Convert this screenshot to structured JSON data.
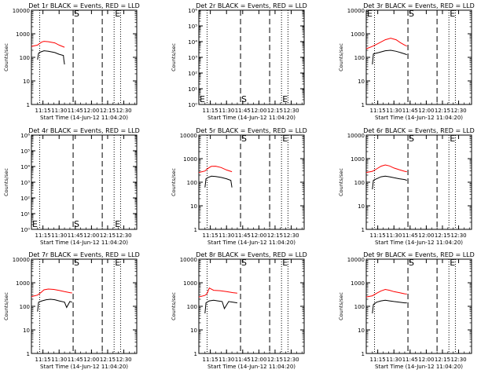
{
  "figure": {
    "background": "#ffffff",
    "foreground": "#000000",
    "lld_color": "#ff0000"
  },
  "chart_data": [
    {
      "type": "line",
      "title": "Det 1r BLACK = Events, RED = LLD",
      "xlabel": "Start Time (14-Jun-12 11:04:20)",
      "ylabel": "Counts/sec",
      "yscale": "log",
      "ylim": [
        1,
        10000
      ],
      "yticks": [
        1,
        10,
        100,
        1000,
        10000
      ],
      "ytick_labels": [
        "1",
        "10",
        "100",
        "1000",
        "10000"
      ],
      "xlim": [
        "11:04:20",
        "12:42:00"
      ],
      "xticks": [
        "11:15",
        "11:30",
        "11:45",
        "12:00",
        "12:15",
        "12:30"
      ],
      "markers": [
        {
          "label": "S",
          "time": "11:43",
          "value": 10000
        },
        {
          "label": "E",
          "time": "12:21",
          "value": 10000
        }
      ],
      "dashed_lines": [
        "11:43",
        "12:10"
      ],
      "dotted_lines": [
        "11:12",
        "12:21",
        "12:27"
      ],
      "series": [
        {
          "name": "LLD",
          "color": "#ff0000",
          "x": [
            "11:04:20",
            "11:10",
            "11:12",
            "11:14",
            "11:16",
            "11:20",
            "11:26",
            "11:30",
            "11:34",
            "11:35"
          ],
          "values": [
            290,
            330,
            390,
            450,
            480,
            460,
            410,
            330,
            280,
            270
          ]
        },
        {
          "name": "Events",
          "color": "#000000",
          "x": [
            "11:10",
            "11:11",
            "11:13",
            "11:16",
            "11:20",
            "11:26",
            "11:30",
            "11:34",
            "11:34:20",
            "11:35"
          ],
          "values": [
            80,
            150,
            170,
            190,
            180,
            160,
            135,
            120,
            80,
            50
          ]
        }
      ]
    },
    {
      "type": "line",
      "title": "Det 2r BLACK = Events, RED = LLD",
      "xlabel": "Start Time (14-Jun-12 11:04:20)",
      "ylabel": "Counts/sec",
      "yscale": "log",
      "ylim": [
        1,
        1000000
      ],
      "yticks": [
        1,
        10,
        100,
        1000,
        10000,
        100000,
        1000000
      ],
      "ytick_labels": [
        "10⁰",
        "10¹",
        "10²",
        "10³",
        "10⁴",
        "10⁵",
        "10⁶"
      ],
      "xlim": [
        "11:04:20",
        "12:42:00"
      ],
      "xticks": [
        "11:15",
        "11:30",
        "11:45",
        "12:00",
        "12:15",
        "12:30"
      ],
      "markers": [
        {
          "label": "E",
          "time": "11:04:20",
          "value": 1
        },
        {
          "label": "S",
          "time": "11:43",
          "value": 1
        },
        {
          "label": "E",
          "time": "12:21",
          "value": 1
        }
      ],
      "dashed_lines": [
        "11:43",
        "12:10"
      ],
      "dotted_lines": [
        "11:12",
        "12:21",
        "12:27"
      ],
      "series": []
    },
    {
      "type": "line",
      "title": "Det 3r BLACK = Events, RED = LLD",
      "xlabel": "Start Time (14-Jun-12 11:04:20)",
      "ylabel": "Counts/sec",
      "yscale": "log",
      "ylim": [
        1,
        10000
      ],
      "yticks": [
        1,
        10,
        100,
        1000,
        10000
      ],
      "ytick_labels": [
        "1",
        "10",
        "100",
        "1000",
        "10000"
      ],
      "xlim": [
        "11:04:20",
        "12:42:00"
      ],
      "xticks": [
        "11:15",
        "11:30",
        "11:45",
        "12:00",
        "12:15",
        "12:30"
      ],
      "markers": [
        {
          "label": "E",
          "time": "11:04:20",
          "value": 10000
        },
        {
          "label": "S",
          "time": "11:43",
          "value": 10000
        },
        {
          "label": "E",
          "time": "12:21",
          "value": 10000
        }
      ],
      "dashed_lines": [
        "11:43",
        "12:10"
      ],
      "dotted_lines": [
        "11:12",
        "12:21",
        "12:27"
      ],
      "series": [
        {
          "name": "LLD",
          "color": "#ff0000",
          "x": [
            "11:04:20",
            "11:10",
            "11:16",
            "11:22",
            "11:27",
            "11:32",
            "11:36",
            "11:40",
            "11:42"
          ],
          "values": [
            230,
            290,
            400,
            560,
            650,
            560,
            420,
            330,
            300
          ]
        },
        {
          "name": "Events",
          "color": "#000000",
          "x": [
            "11:10",
            "11:11",
            "11:16",
            "11:22",
            "11:27",
            "11:32",
            "11:36",
            "11:40",
            "11:42"
          ],
          "values": [
            50,
            140,
            160,
            190,
            200,
            180,
            160,
            140,
            130
          ]
        }
      ]
    },
    {
      "type": "line",
      "title": "Det 4r BLACK = Events, RED = LLD",
      "xlabel": "Start Time (14-Jun-12 11:04:20)",
      "ylabel": "Counts/sec",
      "yscale": "log",
      "ylim": [
        1,
        1000000
      ],
      "yticks": [
        1,
        10,
        100,
        1000,
        10000,
        100000,
        1000000
      ],
      "ytick_labels": [
        "10⁰",
        "10¹",
        "10²",
        "10³",
        "10⁴",
        "10⁵",
        "10⁶"
      ],
      "xlim": [
        "11:04:20",
        "12:42:00"
      ],
      "xticks": [
        "11:15",
        "11:30",
        "11:45",
        "12:00",
        "12:15",
        "12:30"
      ],
      "markers": [
        {
          "label": "E",
          "time": "11:04:20",
          "value": 1
        },
        {
          "label": "S",
          "time": "11:43",
          "value": 1
        },
        {
          "label": "E",
          "time": "12:21",
          "value": 1
        }
      ],
      "dashed_lines": [
        "11:43",
        "12:10"
      ],
      "dotted_lines": [
        "11:12",
        "12:21",
        "12:27"
      ],
      "series": []
    },
    {
      "type": "line",
      "title": "Det 5r BLACK = Events, RED = LLD",
      "xlabel": "Start Time (14-Jun-12 11:04:20)",
      "ylabel": "Counts/sec",
      "yscale": "log",
      "ylim": [
        1,
        10000
      ],
      "yticks": [
        1,
        10,
        100,
        1000,
        10000
      ],
      "ytick_labels": [
        "1",
        "10",
        "100",
        "1000",
        "10000"
      ],
      "xlim": [
        "11:04:20",
        "12:42:00"
      ],
      "xticks": [
        "11:15",
        "11:30",
        "11:45",
        "12:00",
        "12:15",
        "12:30"
      ],
      "markers": [
        {
          "label": "S",
          "time": "11:43",
          "value": 10000
        },
        {
          "label": "E",
          "time": "12:21",
          "value": 10000
        }
      ],
      "dashed_lines": [
        "11:43",
        "12:10"
      ],
      "dotted_lines": [
        "11:12",
        "12:21",
        "12:27"
      ],
      "series": [
        {
          "name": "LLD",
          "color": "#ff0000",
          "x": [
            "11:04:20",
            "11:10",
            "11:12",
            "11:14",
            "11:16",
            "11:20",
            "11:25",
            "11:30",
            "11:35"
          ],
          "values": [
            260,
            300,
            360,
            420,
            470,
            480,
            420,
            330,
            280
          ]
        },
        {
          "name": "Events",
          "color": "#000000",
          "x": [
            "11:10",
            "11:11",
            "11:13",
            "11:16",
            "11:20",
            "11:25",
            "11:30",
            "11:34",
            "11:35"
          ],
          "values": [
            60,
            140,
            160,
            180,
            175,
            160,
            140,
            120,
            60
          ]
        }
      ]
    },
    {
      "type": "line",
      "title": "Det 6r BLACK = Events, RED = LLD",
      "xlabel": "Start Time (14-Jun-12 11:04:20)",
      "ylabel": "Counts/sec",
      "yscale": "log",
      "ylim": [
        1,
        10000
      ],
      "yticks": [
        1,
        10,
        100,
        1000,
        10000
      ],
      "ytick_labels": [
        "1",
        "10",
        "100",
        "1000",
        "10000"
      ],
      "xlim": [
        "11:04:20",
        "12:42:00"
      ],
      "xticks": [
        "11:15",
        "11:30",
        "11:45",
        "12:00",
        "12:15",
        "12:30"
      ],
      "markers": [
        {
          "label": "S",
          "time": "11:43",
          "value": 10000
        },
        {
          "label": "E",
          "time": "12:21",
          "value": 10000
        }
      ],
      "dashed_lines": [
        "11:43",
        "12:10"
      ],
      "dotted_lines": [
        "11:12",
        "12:21",
        "12:27"
      ],
      "series": [
        {
          "name": "LLD",
          "color": "#ff0000",
          "x": [
            "11:04:20",
            "11:10",
            "11:14",
            "11:18",
            "11:22",
            "11:26",
            "11:30",
            "11:35",
            "11:40",
            "11:42"
          ],
          "values": [
            260,
            290,
            370,
            480,
            540,
            490,
            400,
            340,
            290,
            280
          ]
        },
        {
          "name": "Events",
          "color": "#000000",
          "x": [
            "11:10",
            "11:11",
            "11:14",
            "11:18",
            "11:22",
            "11:26",
            "11:30",
            "11:35",
            "11:40",
            "11:42"
          ],
          "values": [
            50,
            120,
            140,
            170,
            180,
            170,
            155,
            140,
            130,
            120
          ]
        }
      ]
    },
    {
      "type": "line",
      "title": "Det 7r BLACK = Events, RED = LLD",
      "xlabel": "Start Time (14-Jun-12 11:04:20)",
      "ylabel": "Counts/sec",
      "yscale": "log",
      "ylim": [
        1,
        10000
      ],
      "yticks": [
        1,
        10,
        100,
        1000,
        10000
      ],
      "ytick_labels": [
        "1",
        "10",
        "100",
        "1000",
        "10000"
      ],
      "xlim": [
        "11:04:20",
        "12:42:00"
      ],
      "xticks": [
        "11:15",
        "11:30",
        "11:45",
        "12:00",
        "12:15",
        "12:30"
      ],
      "markers": [
        {
          "label": "S",
          "time": "11:43",
          "value": 10000
        },
        {
          "label": "E",
          "time": "12:21",
          "value": 10000
        }
      ],
      "dashed_lines": [
        "11:43",
        "12:10"
      ],
      "dotted_lines": [
        "11:12",
        "12:21",
        "12:27"
      ],
      "series": [
        {
          "name": "LLD",
          "color": "#ff0000",
          "x": [
            "11:04:20",
            "11:10",
            "11:13",
            "11:16",
            "11:20",
            "11:25",
            "11:30",
            "11:35",
            "11:40",
            "11:42"
          ],
          "values": [
            260,
            300,
            380,
            500,
            540,
            520,
            470,
            420,
            380,
            370
          ]
        },
        {
          "name": "Events",
          "color": "#000000",
          "x": [
            "11:10",
            "11:11",
            "11:14",
            "11:18",
            "11:22",
            "11:26",
            "11:30",
            "11:35",
            "11:37",
            "11:40",
            "11:42"
          ],
          "values": [
            60,
            150,
            170,
            190,
            200,
            190,
            170,
            150,
            90,
            160,
            150
          ]
        }
      ]
    },
    {
      "type": "line",
      "title": "Det 8r BLACK = Events, RED = LLD",
      "xlabel": "Start Time (14-Jun-12 11:04:20)",
      "ylabel": "Counts/sec",
      "yscale": "log",
      "ylim": [
        1,
        10000
      ],
      "yticks": [
        1,
        10,
        100,
        1000,
        10000
      ],
      "ytick_labels": [
        "1",
        "10",
        "100",
        "1000",
        "10000"
      ],
      "xlim": [
        "11:04:20",
        "12:42:00"
      ],
      "xticks": [
        "11:15",
        "11:30",
        "11:45",
        "12:00",
        "12:15",
        "12:30"
      ],
      "markers": [
        {
          "label": "S",
          "time": "11:43",
          "value": 10000
        },
        {
          "label": "E",
          "time": "12:21",
          "value": 10000
        }
      ],
      "dashed_lines": [
        "11:43",
        "12:10"
      ],
      "dotted_lines": [
        "11:12",
        "12:21",
        "12:27"
      ],
      "series": [
        {
          "name": "LLD",
          "color": "#ff0000",
          "x": [
            "11:04:20",
            "11:10",
            "11:12",
            "11:14",
            "11:18",
            "11:24",
            "11:30",
            "11:36",
            "11:40"
          ],
          "values": [
            250,
            290,
            350,
            600,
            480,
            460,
            420,
            380,
            360
          ]
        },
        {
          "name": "Events",
          "color": "#000000",
          "x": [
            "11:10",
            "11:11",
            "11:14",
            "11:18",
            "11:22",
            "11:26",
            "11:28",
            "11:32",
            "11:36",
            "11:40"
          ],
          "values": [
            50,
            140,
            170,
            180,
            170,
            160,
            80,
            160,
            150,
            140
          ]
        }
      ]
    },
    {
      "type": "line",
      "title": "Det 9r BLACK = Events, RED = LLD",
      "xlabel": "Start Time (14-Jun-12 11:04:20)",
      "ylabel": "Counts/sec",
      "yscale": "log",
      "ylim": [
        1,
        10000
      ],
      "yticks": [
        1,
        10,
        100,
        1000,
        10000
      ],
      "ytick_labels": [
        "1",
        "10",
        "100",
        "1000",
        "10000"
      ],
      "xlim": [
        "11:04:20",
        "12:42:00"
      ],
      "xticks": [
        "11:15",
        "11:30",
        "11:45",
        "12:00",
        "12:15",
        "12:30"
      ],
      "markers": [
        {
          "label": "S",
          "time": "11:43",
          "value": 10000
        },
        {
          "label": "E",
          "time": "12:21",
          "value": 10000
        }
      ],
      "dashed_lines": [
        "11:43",
        "12:10"
      ],
      "dotted_lines": [
        "11:12",
        "12:21",
        "12:27"
      ],
      "series": [
        {
          "name": "LLD",
          "color": "#ff0000",
          "x": [
            "11:04:20",
            "11:10",
            "11:14",
            "11:18",
            "11:22",
            "11:26",
            "11:30",
            "11:35",
            "11:40",
            "11:42"
          ],
          "values": [
            250,
            280,
            360,
            450,
            520,
            480,
            420,
            380,
            340,
            330
          ]
        },
        {
          "name": "Events",
          "color": "#000000",
          "x": [
            "11:10",
            "11:11",
            "11:14",
            "11:18",
            "11:22",
            "11:26",
            "11:30",
            "11:35",
            "11:40",
            "11:42"
          ],
          "values": [
            50,
            120,
            150,
            170,
            180,
            170,
            160,
            150,
            140,
            140
          ]
        }
      ]
    }
  ]
}
